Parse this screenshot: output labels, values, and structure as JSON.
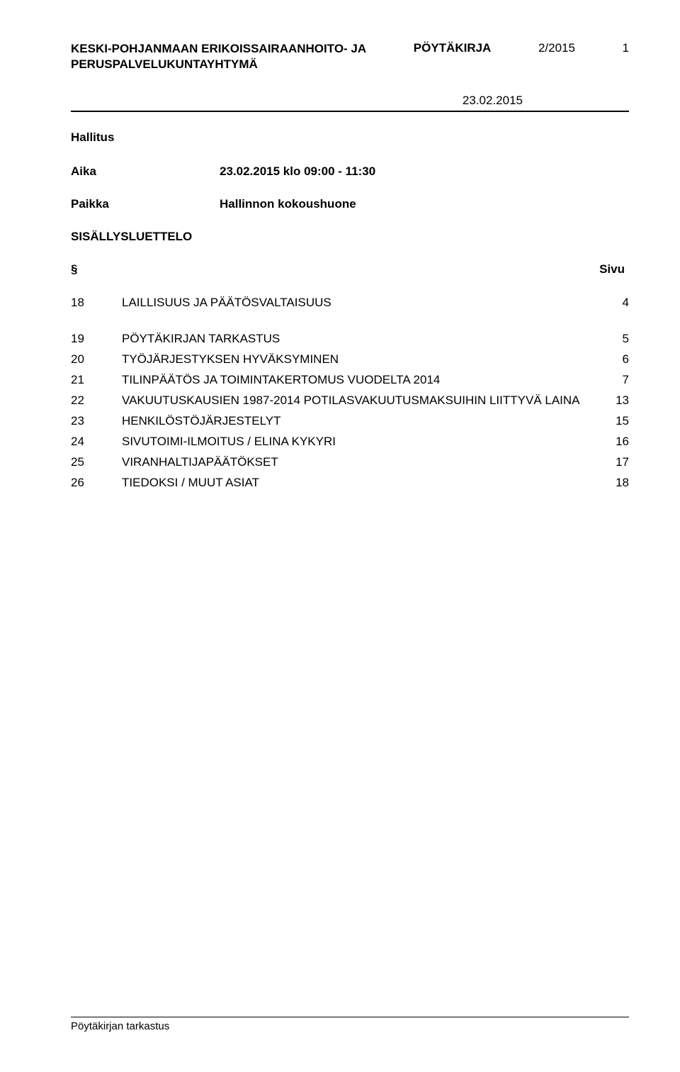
{
  "header": {
    "org_line1": "KESKI-POHJANMAAN ERIKOISSAIRAANHOITO- JA",
    "org_line2": "PERUSPALVELUKUNTAYHTYMÄ",
    "doc_type": "PÖYTÄKIRJA",
    "doc_number": "2/2015",
    "page_number": "1",
    "date": "23.02.2015"
  },
  "body": {
    "group": "Hallitus",
    "time_label": "Aika",
    "time_value": "23.02.2015 klo 09:00 - 11:30",
    "place_label": "Paikka",
    "place_value": "Hallinnon kokoushuone",
    "toc_heading": "SISÄLLYSLUETTELO",
    "col_section": "§",
    "col_page": "Sivu"
  },
  "toc": [
    {
      "num": "18",
      "title": "LAILLISUUS JA PÄÄTÖSVALTAISUUS",
      "page": "4"
    },
    {
      "num": "19",
      "title": "PÖYTÄKIRJAN TARKASTUS",
      "page": "5"
    },
    {
      "num": "20",
      "title": "TYÖJÄRJESTYKSEN HYVÄKSYMINEN",
      "page": "6"
    },
    {
      "num": "21",
      "title": "TILINPÄÄTÖS JA TOIMINTAKERTOMUS VUODELTA 2014",
      "page": "7"
    },
    {
      "num": "22",
      "title": "VAKUUTUSKAUSIEN 1987-2014 POTILASVAKUUTUSMAKSUIHIN LIITTYVÄ LAINA",
      "page": "13"
    },
    {
      "num": "23",
      "title": "HENKILÖSTÖJÄRJESTELYT",
      "page": "15"
    },
    {
      "num": "24",
      "title": "SIVUTOIMI-ILMOITUS / ELINA KYKYRI",
      "page": "16"
    },
    {
      "num": "25",
      "title": "VIRANHALTIJAPÄÄTÖKSET",
      "page": "17"
    },
    {
      "num": "26",
      "title": "TIEDOKSI / MUUT ASIAT",
      "page": "18"
    }
  ],
  "footer": {
    "text": "Pöytäkirjan tarkastus"
  }
}
